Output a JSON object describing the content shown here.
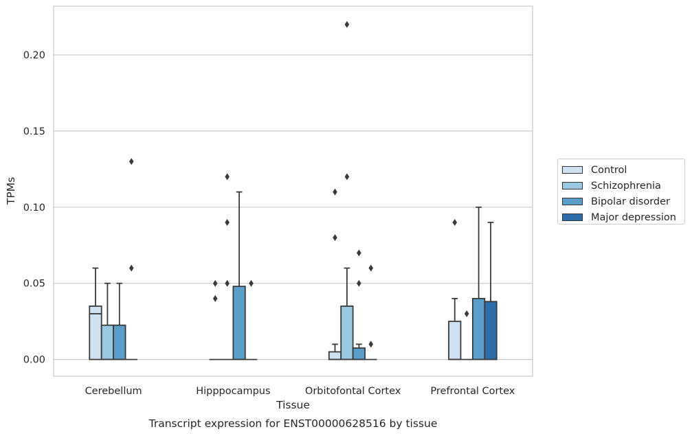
{
  "chart_data": {
    "type": "box",
    "title": "Transcript expression for ENST00000628516 by tissue",
    "xlabel": "Tissue",
    "ylabel": "TPMs",
    "ylim": [
      -0.011,
      0.232
    ],
    "yticks": [
      0.0,
      0.05,
      0.1,
      0.15,
      0.2
    ],
    "ytick_labels": [
      "0.00",
      "0.05",
      "0.10",
      "0.15",
      "0.20"
    ],
    "grid": "horizontal",
    "legend_position": "center-right",
    "categories": [
      "Cerebellum",
      "Hipppocampus",
      "Orbitofontal Cortex",
      "Prefrontal Cortex"
    ],
    "series": [
      {
        "name": "Control",
        "color": "#d0e2f2",
        "boxes": [
          {
            "q1": 0.0,
            "median": 0.03,
            "q3": 0.035,
            "whisker_low": 0.0,
            "whisker_high": 0.06,
            "outliers": []
          },
          {
            "q1": 0.0,
            "median": 0.0,
            "q3": 0.0,
            "whisker_low": 0.0,
            "whisker_high": 0.0,
            "outliers": [
              0.04,
              0.05
            ]
          },
          {
            "q1": 0.0,
            "median": 0.0,
            "q3": 0.005,
            "whisker_low": 0.0,
            "whisker_high": 0.01,
            "outliers": [
              0.08,
              0.11
            ]
          },
          {
            "q1": 0.0,
            "median": 0.0,
            "q3": 0.025,
            "whisker_low": 0.0,
            "whisker_high": 0.04,
            "outliers": [
              0.09
            ]
          }
        ]
      },
      {
        "name": "Schizophrenia",
        "color": "#9ac8e0",
        "boxes": [
          {
            "q1": 0.0,
            "median": 0.0,
            "q3": 0.0225,
            "whisker_low": 0.0,
            "whisker_high": 0.05,
            "outliers": []
          },
          {
            "q1": 0.0,
            "median": 0.0,
            "q3": 0.0,
            "whisker_low": 0.0,
            "whisker_high": 0.0,
            "outliers": [
              0.05,
              0.09,
              0.12
            ]
          },
          {
            "q1": 0.0,
            "median": 0.0,
            "q3": 0.035,
            "whisker_low": 0.0,
            "whisker_high": 0.06,
            "outliers": [
              0.12,
              0.22
            ]
          },
          {
            "q1": 0.0,
            "median": 0.0,
            "q3": 0.0,
            "whisker_low": 0.0,
            "whisker_high": 0.0,
            "outliers": [
              0.03
            ]
          }
        ]
      },
      {
        "name": "Bipolar disorder",
        "color": "#5a9ec9",
        "boxes": [
          {
            "q1": 0.0,
            "median": 0.0,
            "q3": 0.0225,
            "whisker_low": 0.0,
            "whisker_high": 0.05,
            "outliers": []
          },
          {
            "q1": 0.0,
            "median": 0.0,
            "q3": 0.048,
            "whisker_low": 0.0,
            "whisker_high": 0.11,
            "outliers": []
          },
          {
            "q1": 0.0,
            "median": 0.0,
            "q3": 0.0075,
            "whisker_low": 0.0,
            "whisker_high": 0.01,
            "outliers": [
              0.05,
              0.07
            ]
          },
          {
            "q1": 0.0,
            "median": 0.0,
            "q3": 0.04,
            "whisker_low": 0.0,
            "whisker_high": 0.1,
            "outliers": []
          }
        ]
      },
      {
        "name": "Major depression",
        "color": "#2d6da9",
        "boxes": [
          {
            "q1": 0.0,
            "median": 0.0,
            "q3": 0.0,
            "whisker_low": 0.0,
            "whisker_high": 0.0,
            "outliers": [
              0.06,
              0.13
            ]
          },
          {
            "q1": 0.0,
            "median": 0.0,
            "q3": 0.0,
            "whisker_low": 0.0,
            "whisker_high": 0.0,
            "outliers": [
              0.05
            ]
          },
          {
            "q1": 0.0,
            "median": 0.0,
            "q3": 0.0,
            "whisker_low": 0.0,
            "whisker_high": 0.0,
            "outliers": [
              0.01,
              0.06
            ]
          },
          {
            "q1": 0.0,
            "median": 0.0,
            "q3": 0.038,
            "whisker_low": 0.0,
            "whisker_high": 0.09,
            "outliers": []
          }
        ]
      }
    ]
  }
}
